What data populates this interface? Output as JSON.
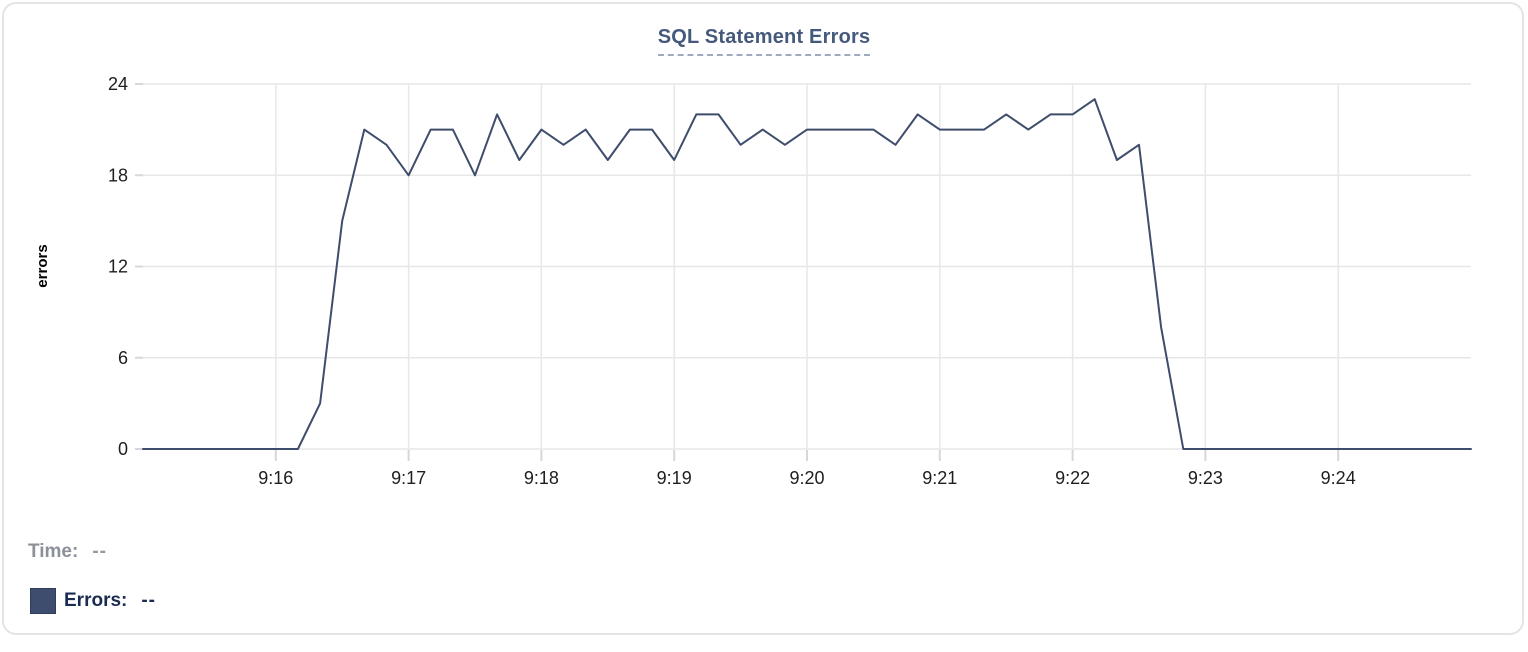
{
  "chart": {
    "title": "SQL Statement Errors"
  },
  "legend": {
    "time_label": "Time:",
    "time_value": "--",
    "errors_label": "Errors:",
    "errors_value": "--",
    "swatch_color": "#3e4d6d"
  },
  "colors": {
    "line": "#3e4d6b",
    "title": "#45597c",
    "title_underline": "#9faac0",
    "grid": "#e7e7e9",
    "tick": "#d6d7da",
    "axis_text": "#1e1e1e",
    "legend_gray": "#8b9099",
    "legend_navy": "#1c2b52",
    "card_border": "#e3e4e8"
  },
  "chart_data": {
    "type": "line",
    "title": "SQL Statement Errors",
    "xlabel": "",
    "ylabel": "errors",
    "series_name": "Errors",
    "grid": true,
    "ylim": [
      0,
      24
    ],
    "y_ticks": [
      0,
      6,
      12,
      18,
      24
    ],
    "x_ticks": [
      "9:16",
      "9:17",
      "9:18",
      "9:19",
      "9:20",
      "9:21",
      "9:22",
      "9:23",
      "9:24"
    ],
    "x_tick_first_index": 6,
    "x_tick_step": 6,
    "interval_seconds": 10,
    "x_times": [
      "9:15:00",
      "9:15:10",
      "9:15:20",
      "9:15:30",
      "9:15:40",
      "9:15:50",
      "9:16:00",
      "9:16:10",
      "9:16:20",
      "9:16:30",
      "9:16:40",
      "9:16:50",
      "9:17:00",
      "9:17:10",
      "9:17:20",
      "9:17:30",
      "9:17:40",
      "9:17:50",
      "9:18:00",
      "9:18:10",
      "9:18:20",
      "9:18:30",
      "9:18:40",
      "9:18:50",
      "9:19:00",
      "9:19:10",
      "9:19:20",
      "9:19:30",
      "9:19:40",
      "9:19:50",
      "9:20:00",
      "9:20:10",
      "9:20:20",
      "9:20:30",
      "9:20:40",
      "9:20:50",
      "9:21:00",
      "9:21:10",
      "9:21:20",
      "9:21:30",
      "9:21:40",
      "9:21:50",
      "9:22:00",
      "9:22:10",
      "9:22:20",
      "9:22:30",
      "9:22:40",
      "9:22:50",
      "9:23:00",
      "9:23:10",
      "9:23:20",
      "9:23:30",
      "9:23:40",
      "9:23:50",
      "9:24:00",
      "9:24:10",
      "9:24:20",
      "9:24:30",
      "9:24:40",
      "9:24:50",
      "9:25:00"
    ],
    "values": [
      0,
      0,
      0,
      0,
      0,
      0,
      0,
      0,
      3,
      15,
      21,
      20,
      18,
      21,
      21,
      18,
      22,
      19,
      21,
      20,
      21,
      19,
      21,
      21,
      19,
      22,
      22,
      20,
      21,
      20,
      21,
      21,
      21,
      21,
      20,
      22,
      21,
      21,
      21,
      22,
      21,
      22,
      22,
      23,
      19,
      20,
      8,
      0,
      0,
      0,
      0,
      0,
      0,
      0,
      0,
      0,
      0,
      0,
      0,
      0,
      0
    ]
  }
}
